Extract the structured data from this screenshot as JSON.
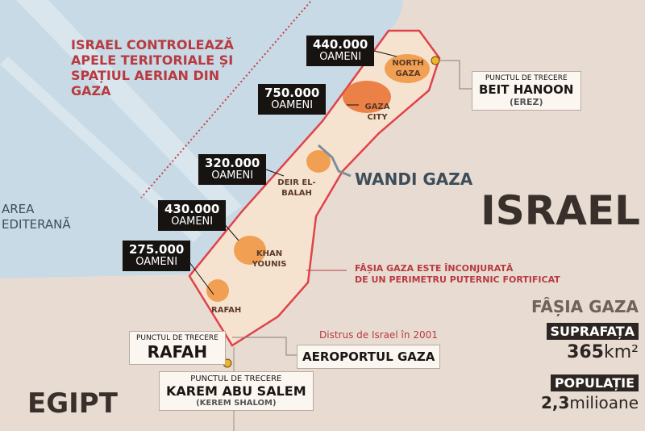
{
  "sea_note": [
    "ISRAEL CONTROLEAZĂ",
    "APELE TERITORIALE ȘI",
    "SPAȚIUL AERIAN DIN",
    "GAZA"
  ],
  "sea_name": [
    "AREA",
    "EDITERANĂ"
  ],
  "countries": {
    "israel": "ISRAEL",
    "egypt": "EGIPT"
  },
  "wadi": "WANDI GAZA",
  "populations": [
    {
      "number": "440.000",
      "unit": "OAMENI",
      "city": "NORTH GAZA"
    },
    {
      "number": "750.000",
      "unit": "OAMENI",
      "city": "GAZA CITY"
    },
    {
      "number": "320.000",
      "unit": "OAMENI",
      "city": "DEIR EL-BALAH"
    },
    {
      "number": "430.000",
      "unit": "OAMENI",
      "city": "KHAN YOUNIS"
    },
    {
      "number": "275.000",
      "unit": "OAMENI",
      "city": "RAFAH"
    }
  ],
  "crossings": {
    "erez": {
      "label": "PUNCTUL DE TRECERE",
      "name": "BEIT HANOON",
      "alt": "(EREZ)"
    },
    "rafah": {
      "label": "PUNCTUL DE TRECERE",
      "name": "RAFAH"
    },
    "kerem": {
      "label": "PUNCTUL DE TRECERE",
      "name": "KAREM ABU SALEM",
      "alt": "(KEREM SHALOM)"
    }
  },
  "airport": {
    "note": "Distrus de Israel în 2001",
    "name": "AEROPORTUL GAZA"
  },
  "perimeter_note": [
    "FÂȘIA GAZA ESTE ÎNCONJURATĂ",
    "DE UN PERIMETRU PUTERNIC FORTIFICAT"
  ],
  "stats": {
    "title": "FÂȘIA GAZA",
    "area_label": "SUPRAFAȚA",
    "area_value": "365",
    "area_unit": "km²",
    "pop_label": "POPULAȚIE",
    "pop_value": "2,3",
    "pop_unit": "milioane"
  },
  "colors": {
    "sea": "#c8dae5",
    "land": "#e8dcd2",
    "strip": "#f6e3cf",
    "border": "#e0424a",
    "accent": "#b83a40",
    "dark": "#2d2521"
  }
}
